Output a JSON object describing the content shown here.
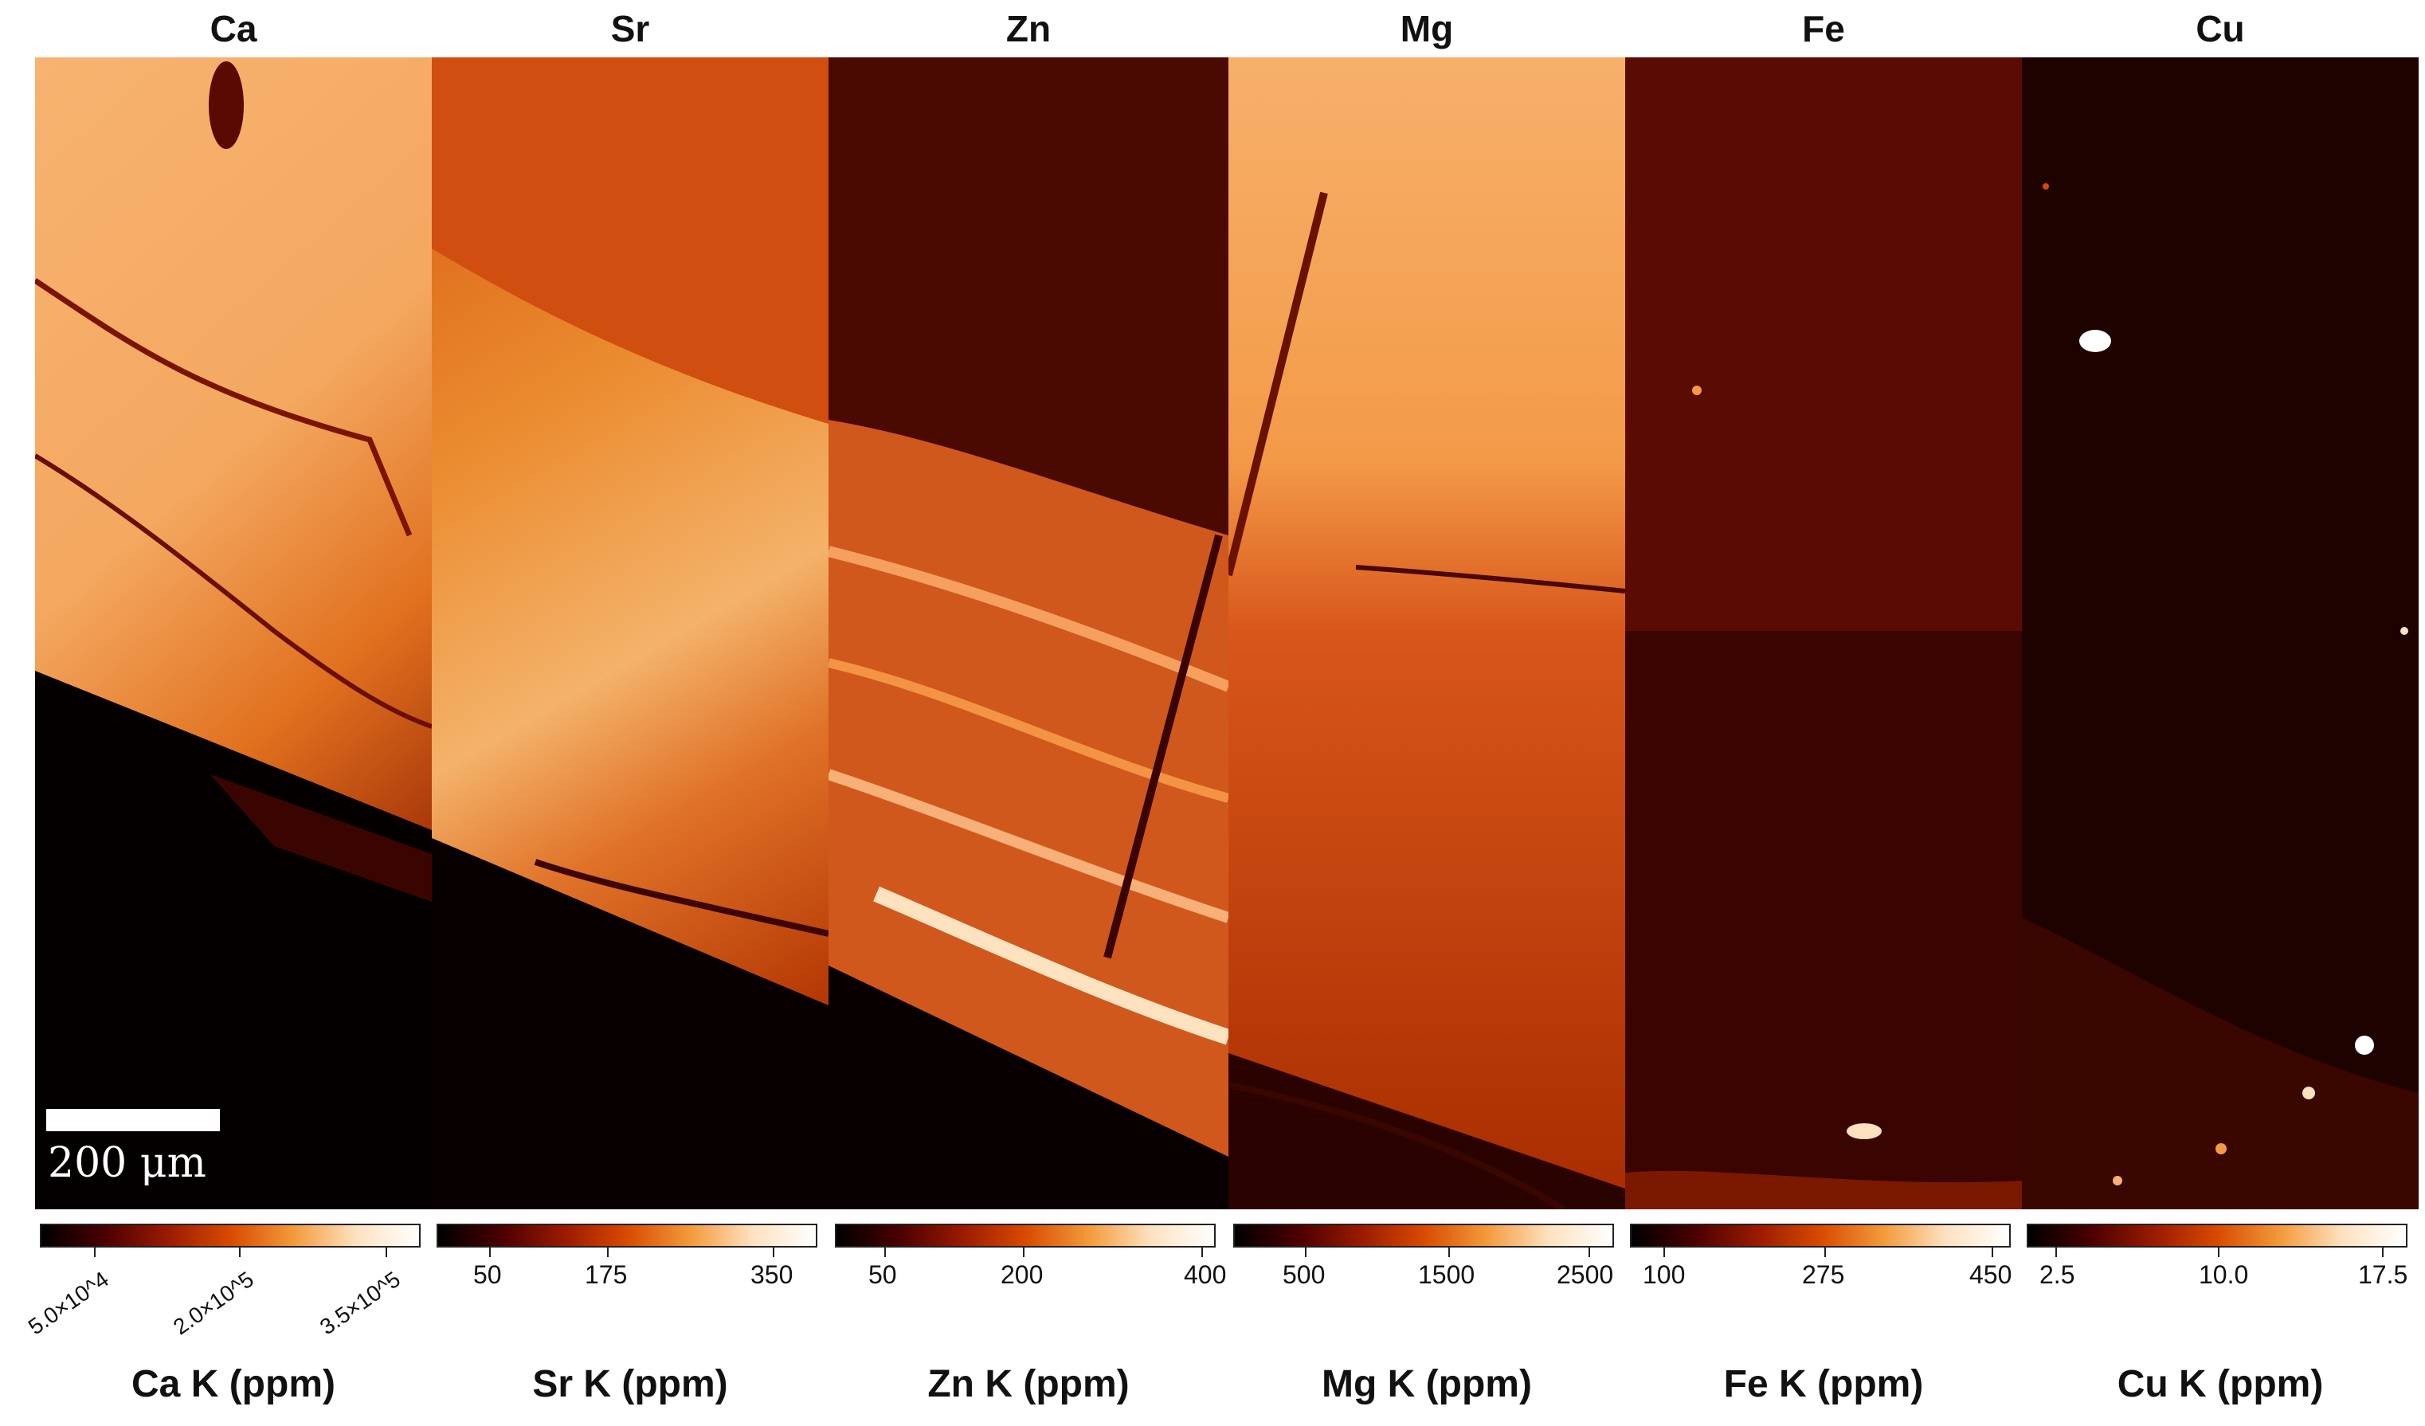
{
  "panels": [
    {
      "element": "Ca",
      "colorbar_label": "Ca K (ppm)",
      "ticks": [
        "5.0×10^4",
        "2.0×10^5",
        "3.5×10^5"
      ],
      "ticks_rotated": true
    },
    {
      "element": "Sr",
      "colorbar_label": "Sr K (ppm)",
      "ticks": [
        "50",
        "175",
        "350"
      ],
      "ticks_rotated": false
    },
    {
      "element": "Zn",
      "colorbar_label": "Zn K (ppm)",
      "ticks": [
        "50",
        "200",
        "400"
      ],
      "ticks_rotated": false
    },
    {
      "element": "Mg",
      "colorbar_label": "Mg K (ppm)",
      "ticks": [
        "500",
        "1500",
        "2500"
      ],
      "ticks_rotated": false
    },
    {
      "element": "Fe",
      "colorbar_label": "Fe K (ppm)",
      "ticks": [
        "100",
        "275",
        "450"
      ],
      "ticks_rotated": false
    },
    {
      "element": "Cu",
      "colorbar_label": "Cu K (ppm)",
      "ticks": [
        "2.5",
        "10.0",
        "17.5"
      ],
      "ticks_rotated": false
    }
  ],
  "scalebar": {
    "label": "200 μm"
  },
  "colormap": [
    "#000000",
    "#4a0000",
    "#9a1a00",
    "#d84a00",
    "#f39a3a",
    "#fde2c0",
    "#ffffff"
  ]
}
